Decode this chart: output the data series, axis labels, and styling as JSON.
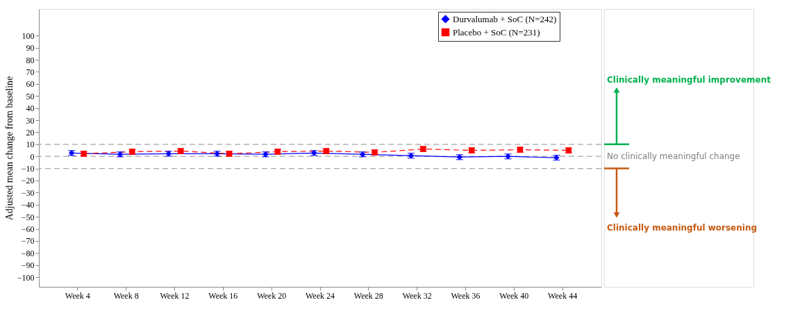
{
  "chart_data": {
    "type": "line",
    "ylabel": "Adjusted mean change from baseline",
    "categories": [
      "Week 4",
      "Week 8",
      "Week 12",
      "Week 16",
      "Week 20",
      "Week 24",
      "Week 28",
      "Week 32",
      "Week 36",
      "Week 40",
      "Week 44"
    ],
    "series": [
      {
        "name": "Durvalumab + SoC (N=242)",
        "color": "#0000ff",
        "marker": "diamond",
        "line_style": "solid",
        "values": [
          2.8,
          1.7,
          2.2,
          2.2,
          1.7,
          2.8,
          1.7,
          0.6,
          -0.6,
          0,
          -1.1
        ],
        "errors": [
          2,
          2,
          2,
          2,
          2,
          2,
          2,
          2,
          2,
          2,
          2
        ]
      },
      {
        "name": "Placebo + SoC (N=231)",
        "color": "#ff0000",
        "marker": "square",
        "line_style": "dashed",
        "values": [
          2.2,
          3.9,
          4.4,
          2.2,
          3.9,
          4.4,
          3.3,
          6.1,
          5,
          5.5,
          5
        ],
        "errors": [
          2,
          2,
          2,
          2,
          2,
          2,
          2,
          2,
          2,
          2,
          2
        ]
      }
    ],
    "ylim": [
      -108,
      122
    ],
    "yticks": [
      -100,
      -90,
      -80,
      -70,
      -60,
      -50,
      -40,
      -30,
      -20,
      -10,
      0,
      10,
      20,
      30,
      40,
      50,
      60,
      70,
      80,
      90,
      100
    ],
    "ref_lines": [
      {
        "axis": "y",
        "value": 10,
        "color": "#a6a6a6",
        "line_style": "dashed"
      },
      {
        "axis": "y",
        "value": 0,
        "color": "#a6a6a6",
        "line_style": "dashed"
      },
      {
        "axis": "y",
        "value": -10,
        "color": "#a6a6a6",
        "line_style": "dashed"
      }
    ],
    "annotations": [
      "Clinically meaningful improvement",
      "No clinically meaningful change",
      "Clinically meaningful worsening"
    ],
    "grid": false,
    "legend": "top right"
  }
}
